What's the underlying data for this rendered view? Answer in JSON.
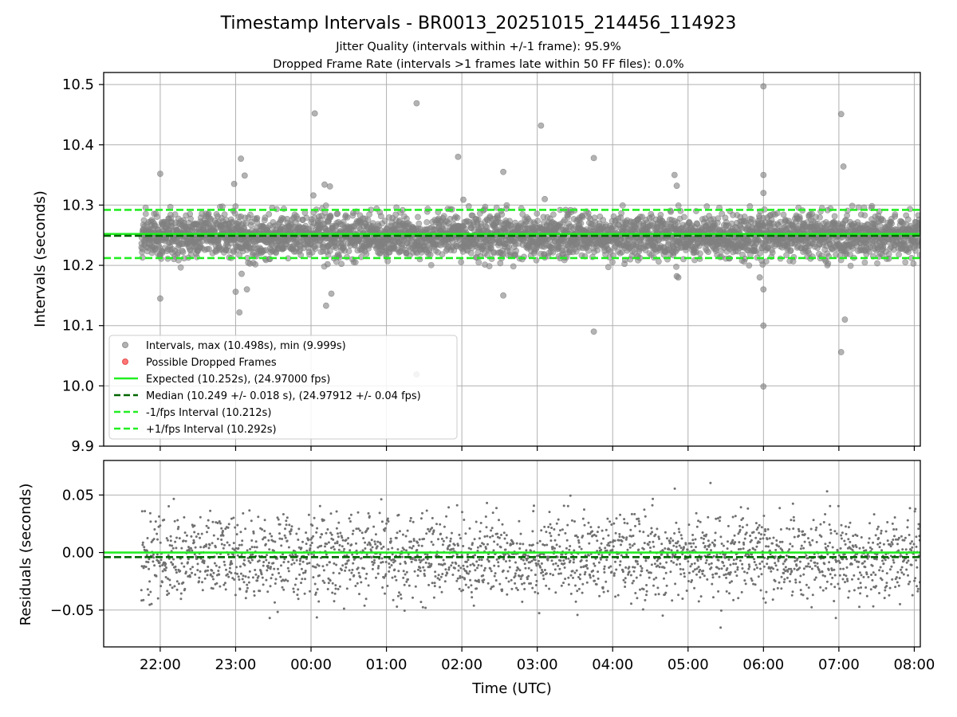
{
  "title": "Timestamp Intervals - BR0013_20251015_214456_114923",
  "subtitle1": "Jitter Quality (intervals within +/-1 frame): 95.9%",
  "subtitle2": "Dropped Frame Rate (intervals >1 frames late within 50 FF files): 0.0%",
  "colors": {
    "points": "#808080",
    "expected": "#22ee22",
    "median": "#006400",
    "interval_lines": "#22ee22",
    "dropped": "#ff5555",
    "grid": "#b0b0b0"
  },
  "chart_data": [
    {
      "type": "scatter",
      "name": "intervals",
      "ylabel": "Intervals (seconds)",
      "xlabel": "",
      "x_unit": "hours since 00:00 UTC",
      "xlim": [
        -2.75,
        8.08
      ],
      "ylim": [
        9.9,
        10.52
      ],
      "yticks": [
        9.9,
        10.0,
        10.1,
        10.2,
        10.3,
        10.4,
        10.5
      ],
      "ytick_labels": [
        "9.9",
        "10.0",
        "10.1",
        "10.2",
        "10.3",
        "10.4",
        "10.5"
      ],
      "xticks": [
        -2,
        -1,
        0,
        1,
        2,
        3,
        4,
        5,
        6,
        7,
        8
      ],
      "grid": true,
      "legend_position": "lower-left",
      "hlines": [
        {
          "name": "expected",
          "value": 10.252,
          "style": "solid",
          "label": "Expected (10.252s), (24.97000 fps)"
        },
        {
          "name": "median",
          "value": 10.249,
          "style": "dashed",
          "label": "Median (10.249 +/- 0.018 s), (24.97912 +/- 0.04 fps)"
        },
        {
          "name": "minus-interval",
          "value": 10.212,
          "style": "dashed",
          "label": "-1/fps Interval (10.212s)"
        },
        {
          "name": "plus-interval",
          "value": 10.292,
          "style": "dashed",
          "label": "+1/fps Interval (10.292s)"
        }
      ],
      "series_labels": {
        "intervals": "Intervals, max (10.498s), min (9.999s)",
        "dropped": "Possible Dropped Frames"
      },
      "data_range": {
        "x_start": -2.25,
        "x_end": 8.08,
        "n_points": 3600,
        "center": 10.249,
        "std": 0.018
      },
      "outliers": [
        {
          "x": -2.0,
          "y": 10.352
        },
        {
          "x": -2.0,
          "y": 10.145
        },
        {
          "x": -1.02,
          "y": 10.335
        },
        {
          "x": -0.93,
          "y": 10.377
        },
        {
          "x": -0.88,
          "y": 10.349
        },
        {
          "x": -1.0,
          "y": 10.156
        },
        {
          "x": -0.92,
          "y": 10.186
        },
        {
          "x": -0.85,
          "y": 10.16
        },
        {
          "x": -0.95,
          "y": 10.122
        },
        {
          "x": 0.05,
          "y": 10.452
        },
        {
          "x": 0.03,
          "y": 10.316
        },
        {
          "x": 0.18,
          "y": 10.334
        },
        {
          "x": 0.25,
          "y": 10.331
        },
        {
          "x": 0.22,
          "y": 10.202
        },
        {
          "x": 0.27,
          "y": 10.153
        },
        {
          "x": 0.2,
          "y": 10.133
        },
        {
          "x": 1.4,
          "y": 10.469
        },
        {
          "x": 1.4,
          "y": 10.019
        },
        {
          "x": 1.95,
          "y": 10.38
        },
        {
          "x": 2.02,
          "y": 10.309
        },
        {
          "x": 2.55,
          "y": 10.355
        },
        {
          "x": 2.55,
          "y": 10.15
        },
        {
          "x": 3.05,
          "y": 10.432
        },
        {
          "x": 3.1,
          "y": 10.31
        },
        {
          "x": 3.75,
          "y": 10.378
        },
        {
          "x": 3.75,
          "y": 10.09
        },
        {
          "x": 4.82,
          "y": 10.35
        },
        {
          "x": 4.85,
          "y": 10.332
        },
        {
          "x": 4.87,
          "y": 10.18
        },
        {
          "x": 4.85,
          "y": 10.182
        },
        {
          "x": 6.0,
          "y": 10.497
        },
        {
          "x": 6.0,
          "y": 10.35
        },
        {
          "x": 6.0,
          "y": 10.32
        },
        {
          "x": 6.0,
          "y": 10.16
        },
        {
          "x": 6.0,
          "y": 10.1
        },
        {
          "x": 5.95,
          "y": 10.18
        },
        {
          "x": 6.0,
          "y": 9.999
        },
        {
          "x": 7.03,
          "y": 10.451
        },
        {
          "x": 7.06,
          "y": 10.364
        },
        {
          "x": 7.08,
          "y": 10.11
        },
        {
          "x": 7.03,
          "y": 10.056
        }
      ],
      "legend": [
        {
          "name": "intervals",
          "marker": "circle",
          "label": "Intervals, max (10.498s), min (9.999s)"
        },
        {
          "name": "dropped",
          "marker": "circle",
          "label": "Possible Dropped Frames"
        },
        {
          "name": "expected",
          "marker": "solid-line",
          "label": "Expected (10.252s), (24.97000 fps)"
        },
        {
          "name": "median",
          "marker": "dashed-line",
          "label": "Median (10.249 +/- 0.018 s), (24.97912 +/- 0.04 fps)"
        },
        {
          "name": "minus-interval",
          "marker": "dashed-line",
          "label": "-1/fps Interval (10.212s)"
        },
        {
          "name": "plus-interval",
          "marker": "dashed-line",
          "label": "+1/fps Interval (10.292s)"
        }
      ]
    },
    {
      "type": "scatter",
      "name": "residuals",
      "ylabel": "Residuals (seconds)",
      "xlabel": "Time (UTC)",
      "x_unit": "hours since 00:00 UTC",
      "xlim": [
        -2.75,
        8.08
      ],
      "ylim": [
        -0.082,
        0.08
      ],
      "yticks": [
        -0.05,
        0.0,
        0.05
      ],
      "ytick_labels": [
        "−0.05",
        "0.00",
        "0.05"
      ],
      "xticks": [
        -2,
        -1,
        0,
        1,
        2,
        3,
        4,
        5,
        6,
        7,
        8
      ],
      "xtick_labels": [
        "22:00",
        "23:00",
        "00:00",
        "01:00",
        "02:00",
        "03:00",
        "04:00",
        "05:00",
        "06:00",
        "07:00",
        "08:00"
      ],
      "grid": true,
      "hlines": [
        {
          "name": "expected",
          "value": 0.0,
          "style": "solid"
        },
        {
          "name": "median",
          "value": -0.004,
          "style": "dashed"
        }
      ],
      "data_range": {
        "x_start": -2.25,
        "x_end": 8.08,
        "n_points": 2400,
        "center": -0.004,
        "std": 0.018
      }
    }
  ]
}
